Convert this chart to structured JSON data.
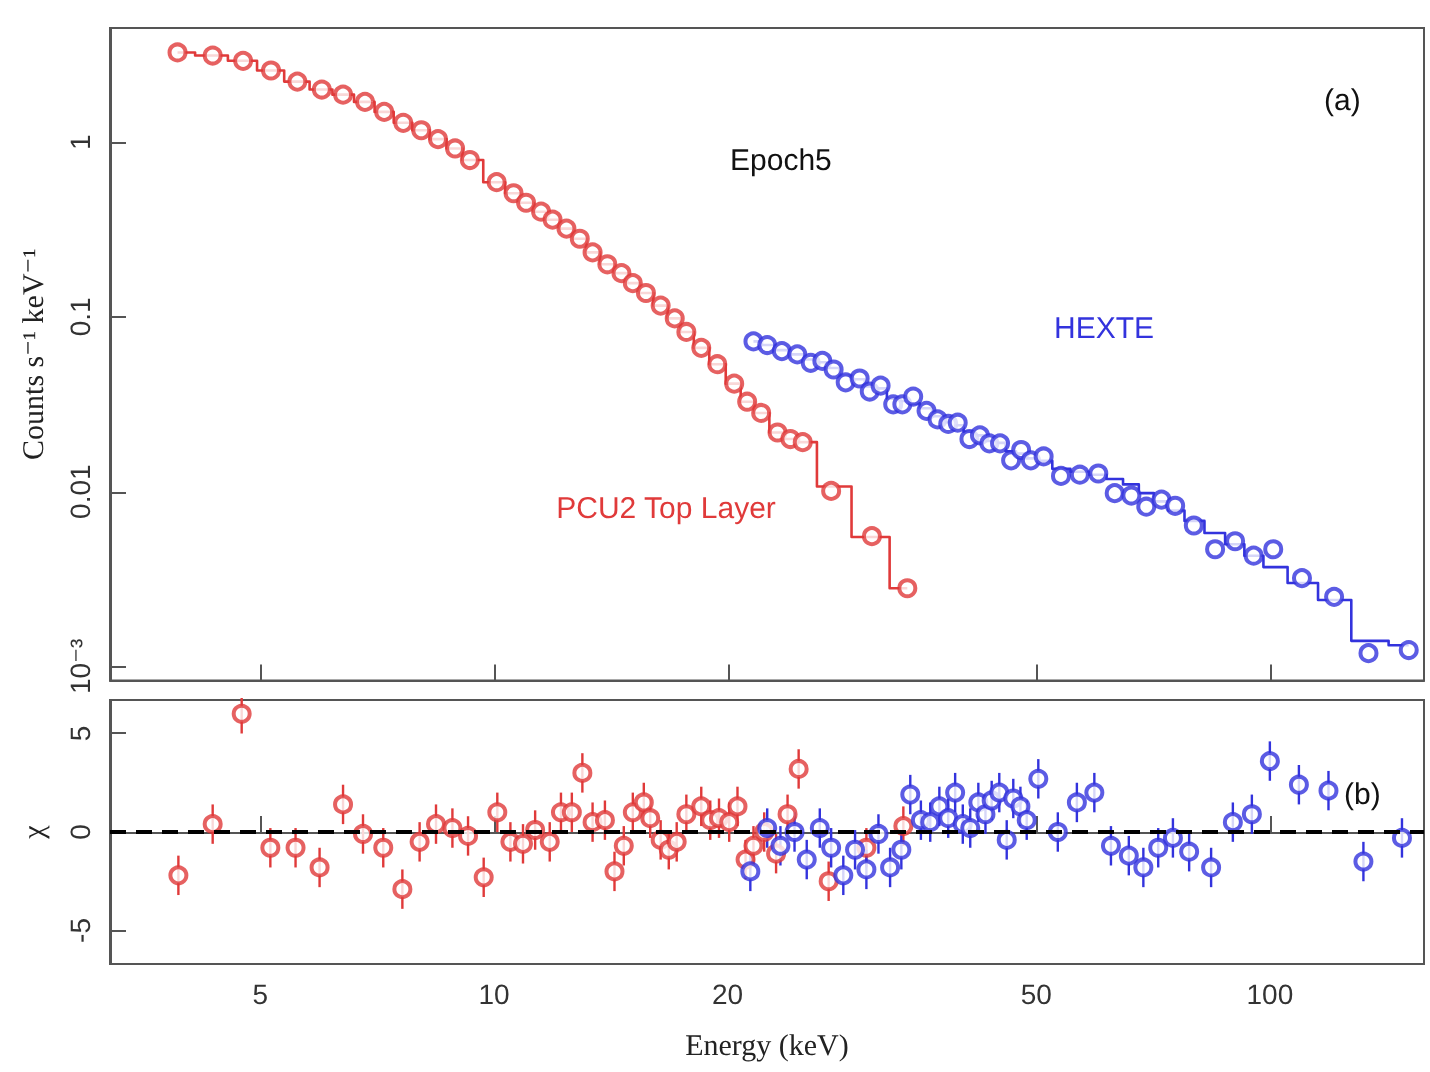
{
  "chart_data": [
    {
      "type": "scatter",
      "ylabel": "Counts s⁻¹ keV⁻¹",
      "log": "xy",
      "tick_labels": "y",
      "grid": false,
      "legend": false,
      "xlim": [
        3.2,
        158
      ],
      "xticks": [
        5,
        10,
        20,
        50,
        100
      ],
      "ylim": [
        0.00083,
        4.5
      ],
      "yticks": [
        {
          "value": 0.001,
          "label": "10⁻³"
        },
        0.01,
        0.1,
        1
      ],
      "annotations": [
        "(a)",
        "Epoch5"
      ],
      "series": [
        {
          "name": "PCU2 Top Layer",
          "color": "#e03a3a",
          "marker": "circle",
          "x": [
            3.91,
            4.34,
            4.75,
            5.16,
            5.58,
            6.0,
            6.39,
            6.82,
            7.22,
            7.64,
            8.06,
            8.47,
            8.91,
            9.31,
            10.08,
            10.6,
            11.0,
            11.5,
            11.9,
            12.4,
            12.9,
            13.4,
            14.0,
            14.6,
            15.1,
            15.7,
            16.4,
            17.1,
            17.7,
            18.5,
            19.4,
            20.4,
            21.2,
            22.1,
            23.2,
            24.1,
            25.0,
            27.2,
            30.7,
            34.1
          ],
          "values": [
            3.26,
            3.13,
            2.92,
            2.57,
            2.22,
            2.0,
            1.87,
            1.7,
            1.49,
            1.29,
            1.17,
            1.04,
            0.92,
            0.79,
            0.59,
            0.51,
            0.45,
            0.4,
            0.36,
            0.32,
            0.28,
            0.234,
            0.2,
            0.178,
            0.156,
            0.137,
            0.116,
            0.098,
            0.082,
            0.0665,
            0.0536,
            0.0415,
            0.0327,
            0.0282,
            0.0218,
            0.02,
            0.0192,
            0.0101,
            0.00556,
            0.0028
          ]
        },
        {
          "type": "step",
          "color": "#e03a3a",
          "marker": "none",
          "x": [
            3.91,
            4.34,
            4.75,
            5.16,
            5.58,
            6.0,
            6.39,
            6.82,
            7.22,
            7.64,
            8.06,
            8.47,
            8.91,
            9.31,
            10.08,
            10.6,
            11.0,
            11.5,
            11.9,
            12.4,
            12.9,
            13.4,
            14.0,
            14.6,
            15.1,
            15.7,
            16.4,
            17.1,
            17.7,
            18.5,
            19.4,
            20.4,
            21.2,
            22.1,
            23.2,
            24.1,
            25.0,
            27.2,
            30.7,
            34.1
          ],
          "values": [
            3.26,
            3.13,
            2.92,
            2.57,
            2.22,
            2.0,
            1.87,
            1.7,
            1.49,
            1.29,
            1.17,
            1.04,
            0.92,
            0.79,
            0.59,
            0.51,
            0.45,
            0.4,
            0.36,
            0.32,
            0.28,
            0.234,
            0.2,
            0.178,
            0.156,
            0.137,
            0.116,
            0.098,
            0.082,
            0.0665,
            0.0536,
            0.0415,
            0.0327,
            0.0282,
            0.0218,
            0.02,
            0.0192,
            0.0107,
            0.0055,
            0.0028
          ]
        },
        {
          "name": "HEXTE",
          "color": "#3333dd",
          "marker": "circle",
          "x": [
            21.6,
            22.5,
            23.5,
            24.6,
            25.6,
            26.5,
            27.4,
            28.4,
            29.6,
            30.5,
            31.5,
            32.7,
            33.6,
            34.7,
            36.1,
            37.3,
            38.5,
            39.6,
            41.0,
            42.3,
            43.5,
            44.9,
            46.4,
            47.8,
            49.2,
            51.1,
            53.8,
            56.9,
            60.1,
            63.1,
            66.3,
            69.3,
            72.5,
            75.5,
            79.8,
            85,
            90.2,
            95.3,
            101,
            110,
            121,
            134,
            151
          ],
          "values": [
            0.0724,
            0.069,
            0.0637,
            0.061,
            0.0546,
            0.056,
            0.05,
            0.0422,
            0.0444,
            0.0374,
            0.0404,
            0.0316,
            0.0316,
            0.035,
            0.029,
            0.0259,
            0.0244,
            0.0248,
            0.02,
            0.021,
            0.0189,
            0.0189,
            0.0151,
            0.0173,
            0.0151,
            0.0159,
            0.0123,
            0.0125,
            0.0127,
            0.0098,
            0.0095,
            0.0082,
            0.009,
            0.0083,
            0.0064,
            0.00468,
            0.0052,
            0.0043,
            0.00468,
            0.0032,
            0.0025,
            0.00119,
            0.00124
          ]
        },
        {
          "type": "step",
          "color": "#3333dd",
          "marker": "none",
          "x": [
            21.6,
            22.5,
            23.5,
            24.6,
            25.6,
            26.5,
            27.4,
            28.4,
            29.6,
            30.5,
            31.5,
            32.7,
            33.6,
            34.7,
            36.1,
            37.3,
            38.5,
            39.6,
            41.0,
            42.3,
            43.5,
            44.9,
            46.4,
            47.8,
            49.2,
            51.1,
            53.8,
            56.9,
            60.1,
            63.1,
            66.3,
            69.3,
            72.5,
            75.5,
            79.8,
            85,
            90.2,
            95.3,
            101,
            110,
            121,
            134,
            151
          ],
          "values": [
            0.0724,
            0.069,
            0.0645,
            0.061,
            0.057,
            0.055,
            0.051,
            0.046,
            0.044,
            0.04,
            0.039,
            0.034,
            0.033,
            0.032,
            0.03,
            0.027,
            0.025,
            0.024,
            0.022,
            0.021,
            0.0195,
            0.019,
            0.017,
            0.0165,
            0.0155,
            0.015,
            0.0135,
            0.013,
            0.0125,
            0.0118,
            0.011,
            0.0098,
            0.0088,
            0.0078,
            0.0068,
            0.0058,
            0.005,
            0.0043,
            0.0037,
            0.003,
            0.0024,
            0.0014,
            0.00132
          ]
        }
      ]
    },
    {
      "type": "scatter",
      "xlabel": "Energy (keV)",
      "ylabel": "χ",
      "log": "x",
      "grid": false,
      "legend": false,
      "xlim": [
        3.2,
        158
      ],
      "xticks": [
        5,
        10,
        20,
        50,
        100
      ],
      "ylim": [
        -6.7,
        6.7
      ],
      "yticks": [
        -5,
        0,
        5
      ],
      "annotations": [
        "(b)"
      ],
      "ref_lines": [
        {
          "axis": "y",
          "value": 0,
          "color": "#000000",
          "line_style": "dashed"
        }
      ],
      "series": [
        {
          "color": "#e03a3a",
          "marker": "circle",
          "x": [
            3.92,
            4.34,
            4.73,
            5.15,
            5.55,
            5.96,
            6.39,
            6.78,
            7.2,
            7.62,
            8.02,
            8.42,
            8.84,
            9.26,
            9.7,
            10.1,
            10.5,
            10.9,
            11.3,
            11.8,
            12.2,
            12.6,
            13.0,
            13.4,
            13.9,
            14.3,
            14.7,
            15.1,
            15.6,
            15.9,
            16.4,
            16.8,
            17.2,
            17.7,
            18.5,
            19.0,
            19.5,
            20.1,
            20.6,
            21.1,
            21.6,
            22.3,
            23.1,
            23.9,
            24.7,
            27.0,
            30.2,
            33.7
          ],
          "values": [
            -2.2,
            0.4,
            6.0,
            -0.8,
            -0.8,
            -1.8,
            1.4,
            -0.1,
            -0.8,
            -2.9,
            -0.5,
            0.4,
            0.2,
            -0.2,
            -2.3,
            1.0,
            -0.5,
            -0.6,
            0.1,
            -0.5,
            1.0,
            1.0,
            3.0,
            0.5,
            0.6,
            -2.0,
            -0.7,
            1.0,
            1.5,
            0.7,
            -0.4,
            -0.9,
            -0.5,
            0.9,
            1.3,
            0.6,
            0.7,
            0.5,
            1.3,
            -1.4,
            -0.7,
            0,
            -1.1,
            0.9,
            3.2,
            -2.5,
            -0.8,
            0.3
          ],
          "errors": [
            1,
            1,
            1,
            1,
            1,
            1,
            1,
            1,
            1,
            1,
            1,
            1,
            1,
            1,
            1,
            1,
            1,
            1,
            1,
            1,
            1,
            1,
            1,
            1,
            1,
            1,
            1,
            1,
            1,
            1,
            1,
            1,
            1,
            1,
            1,
            1,
            1,
            1,
            1,
            1,
            1,
            1,
            1,
            1,
            1,
            1,
            1,
            1
          ]
        },
        {
          "color": "#3333dd",
          "marker": "circle",
          "x": [
            21.4,
            22.5,
            23.4,
            24.4,
            25.3,
            26.3,
            27.2,
            28.2,
            29.2,
            30.2,
            31.3,
            32.4,
            33.5,
            34.4,
            35.5,
            36.5,
            37.5,
            38.5,
            39.3,
            40.2,
            41.1,
            42.1,
            43.0,
            43.8,
            44.8,
            45.8,
            46.7,
            47.7,
            48.6,
            50.3,
            53.3,
            56.4,
            59.4,
            62.4,
            65.8,
            68.7,
            71.8,
            75.0,
            78.7,
            84.0,
            89.6,
            94.8,
            100,
            109,
            119,
            132,
            148
          ],
          "values": [
            -2.0,
            0.2,
            -0.7,
            0,
            -1.4,
            0.2,
            -0.8,
            -2.2,
            -0.9,
            -1.9,
            -0.1,
            -1.8,
            -0.9,
            1.9,
            0.6,
            0.5,
            1.3,
            0.7,
            2.0,
            0.4,
            0.2,
            1.5,
            0.9,
            1.6,
            2.0,
            -0.4,
            1.7,
            1.3,
            0.6,
            2.7,
            0,
            1.5,
            2.0,
            -0.7,
            -1.2,
            -1.8,
            -0.8,
            -0.3,
            -1.0,
            -1.8,
            0.5,
            0.9,
            3.6,
            2.4,
            2.1,
            -1.5,
            -0.3
          ],
          "errors": [
            1,
            1,
            1,
            1,
            1,
            1,
            1,
            1,
            1,
            1,
            1,
            1,
            1,
            1,
            1,
            1,
            1,
            1,
            1,
            1,
            1,
            1,
            1,
            1,
            1,
            1,
            1,
            1,
            1,
            1,
            1,
            1,
            1,
            1,
            1,
            1,
            1,
            1,
            1,
            1,
            1,
            1,
            1,
            1,
            1,
            1,
            1
          ]
        }
      ]
    }
  ]
}
